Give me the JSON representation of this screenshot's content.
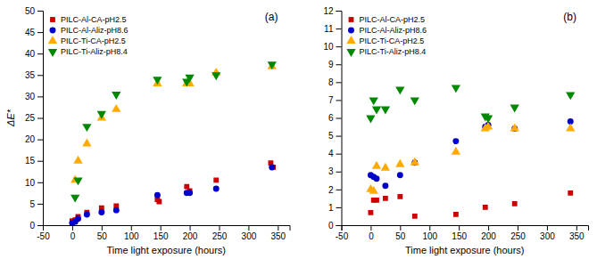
{
  "chart_data": [
    {
      "type": "scatter",
      "title": "(a)",
      "xlabel": "Time light exposure (hours)",
      "ylabel": "ΔE*",
      "legend": "upper left",
      "xlim": [
        -50,
        370
      ],
      "xticks": [
        -50,
        0,
        50,
        100,
        150,
        200,
        250,
        300,
        350
      ],
      "ylim": [
        0,
        50
      ],
      "yticks": [
        0,
        5,
        10,
        15,
        20,
        25,
        30,
        35,
        40,
        45,
        50
      ],
      "series": [
        {
          "name": "PILC-Al-CA-pH2.5",
          "color": "#cc0000",
          "marker": "square",
          "x": [
            0,
            5,
            10,
            25,
            50,
            75,
            145,
            148,
            195,
            200,
            245,
            338,
            342
          ],
          "values": [
            1.0,
            1.2,
            2.0,
            3.0,
            4.0,
            4.5,
            6.0,
            5.5,
            9.0,
            8.0,
            10.5,
            14.5,
            13.5
          ]
        },
        {
          "name": "PILC-Al-Aliz-pH8.6",
          "color": "#0000cc",
          "marker": "circle",
          "x": [
            0,
            5,
            10,
            25,
            50,
            75,
            145,
            195,
            200,
            245,
            340
          ],
          "values": [
            0.5,
            0.8,
            1.5,
            2.5,
            3.0,
            3.5,
            7.0,
            7.5,
            7.5,
            8.5,
            13.5
          ]
        },
        {
          "name": "PILC-Ti-CA-pH2.5",
          "color": "#ffaa00",
          "marker": "triangle-up",
          "x": [
            5,
            10,
            25,
            50,
            75,
            145,
            195,
            200,
            245,
            340
          ],
          "values": [
            10.5,
            15.0,
            19.0,
            25.0,
            27.0,
            33.0,
            33.0,
            33.0,
            35.5,
            37.0
          ]
        },
        {
          "name": "PILC-Ti-Aliz-pH8.4",
          "color": "#008800",
          "marker": "triangle-down",
          "x": [
            5,
            10,
            25,
            50,
            75,
            145,
            195,
            200,
            245,
            340
          ],
          "values": [
            6.5,
            10.5,
            23.0,
            26.0,
            30.5,
            34.0,
            33.5,
            34.5,
            35.0,
            37.5
          ]
        }
      ]
    },
    {
      "type": "scatter",
      "title": "(b)",
      "xlabel": "Time light exposure (hours)",
      "legend": "upper left",
      "xlim": [
        -50,
        370
      ],
      "xticks": [
        -50,
        0,
        50,
        100,
        150,
        200,
        250,
        300,
        350
      ],
      "ylim": [
        0,
        12
      ],
      "yticks": [
        0,
        1,
        2,
        3,
        4,
        5,
        6,
        7,
        8,
        9,
        10,
        11,
        12
      ],
      "series": [
        {
          "name": "PILC-Al-CA-pH2.5",
          "color": "#cc0000",
          "marker": "square",
          "x": [
            0,
            5,
            10,
            25,
            50,
            75,
            145,
            195,
            245,
            340
          ],
          "values": [
            0.7,
            1.4,
            1.4,
            1.5,
            1.6,
            0.5,
            0.6,
            1.0,
            1.2,
            1.8
          ]
        },
        {
          "name": "PILC-Al-Aliz-pH8.6",
          "color": "#0000cc",
          "marker": "circle",
          "x": [
            0,
            5,
            10,
            25,
            50,
            75,
            145,
            195,
            200,
            245,
            340
          ],
          "values": [
            2.8,
            2.7,
            2.6,
            2.2,
            2.8,
            3.5,
            4.7,
            5.5,
            5.6,
            5.4,
            5.8
          ]
        },
        {
          "name": "PILC-Ti-CA-pH2.5",
          "color": "#ffaa00",
          "marker": "triangle-up",
          "x": [
            0,
            5,
            10,
            25,
            50,
            75,
            145,
            195,
            200,
            245,
            340
          ],
          "values": [
            2.0,
            1.9,
            3.3,
            3.2,
            3.4,
            3.5,
            4.1,
            5.4,
            5.5,
            5.4,
            5.4
          ]
        },
        {
          "name": "PILC-Ti-Aliz-pH8.4",
          "color": "#008800",
          "marker": "triangle-down",
          "x": [
            0,
            5,
            10,
            25,
            50,
            75,
            145,
            195,
            200,
            245,
            340
          ],
          "values": [
            6.0,
            7.0,
            6.5,
            6.5,
            7.6,
            7.0,
            7.7,
            6.1,
            6.0,
            6.6,
            7.3
          ]
        }
      ]
    }
  ]
}
